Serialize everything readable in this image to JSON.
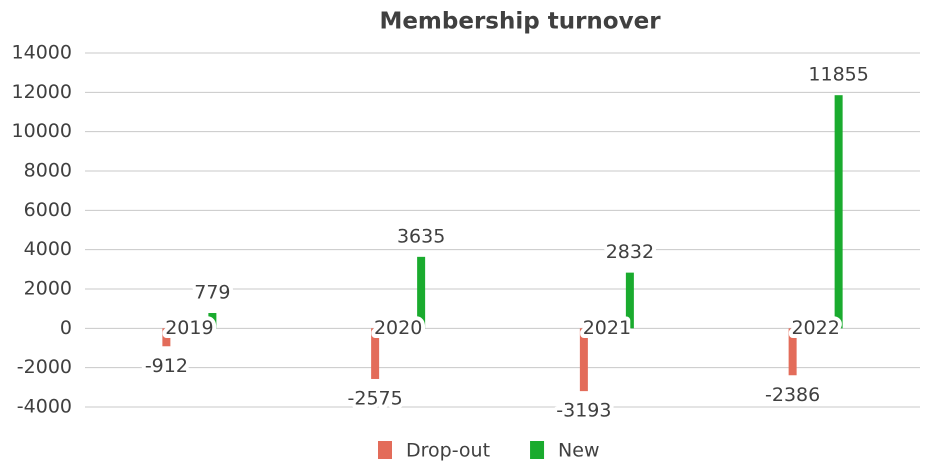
{
  "chart_data": {
    "type": "bar",
    "title": "Membership turnover",
    "categories": [
      "2019",
      "2020",
      "2021",
      "2022"
    ],
    "series": [
      {
        "name": "Drop-out",
        "color": "#e36c5a",
        "values": [
          -912,
          -2575,
          -3193,
          -2386
        ]
      },
      {
        "name": "New",
        "color": "#1aab2e",
        "values": [
          779,
          3635,
          2832,
          11855
        ]
      }
    ],
    "ylim": [
      -4000,
      14000
    ],
    "yticks": [
      -4000,
      -2000,
      0,
      2000,
      4000,
      6000,
      8000,
      10000,
      12000,
      14000
    ],
    "grid": true,
    "legend": "bottom"
  }
}
